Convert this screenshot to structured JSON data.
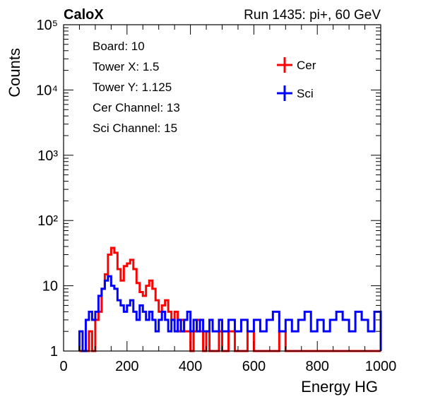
{
  "header": {
    "experiment": "CaloX",
    "run_label": "Run 1435: pi+, 60 GeV"
  },
  "info_box": [
    "Board: 10",
    "Tower X: 1.5",
    "Tower Y: 1.125",
    "Cer Channel: 13",
    "Sci Channel: 15"
  ],
  "chart_data": {
    "type": "line",
    "title": "",
    "xlabel": "Energy HG",
    "ylabel": "Counts",
    "xlim": [
      0,
      1000
    ],
    "ylim": [
      1,
      100000
    ],
    "yscale": "log",
    "grid": false,
    "legend_position": "top-right",
    "x_ticks": [
      "0",
      "200",
      "400",
      "600",
      "800",
      "1000"
    ],
    "y_ticks": [
      {
        "value": 1,
        "label": "1"
      },
      {
        "value": 10,
        "label": "10"
      },
      {
        "value": 100,
        "label": "10²"
      },
      {
        "value": 1000,
        "label": "10³"
      },
      {
        "value": 10000,
        "label": "10⁴"
      },
      {
        "value": 100000,
        "label": "10⁵"
      }
    ],
    "x": [
      50,
      60,
      70,
      80,
      90,
      100,
      110,
      120,
      130,
      140,
      150,
      160,
      170,
      180,
      190,
      200,
      210,
      220,
      230,
      240,
      250,
      260,
      270,
      280,
      290,
      300,
      310,
      320,
      330,
      340,
      350,
      360,
      370,
      380,
      390,
      400,
      410,
      420,
      430,
      440,
      450,
      460,
      470,
      480,
      490,
      500,
      520,
      540,
      560,
      580,
      600,
      620,
      640,
      660,
      680,
      700,
      720,
      740,
      760,
      780,
      800,
      820,
      840,
      860,
      880,
      900,
      920,
      940,
      960,
      980,
      1000
    ],
    "series": [
      {
        "name": "Cer",
        "color": "#ff0000",
        "values": [
          1,
          1,
          1,
          2,
          1,
          3,
          4,
          9,
          15,
          30,
          38,
          32,
          18,
          12,
          20,
          22,
          25,
          18,
          11,
          8,
          7,
          10,
          12,
          9,
          6,
          4,
          5,
          6,
          4,
          3,
          4,
          2,
          3,
          2,
          2,
          1,
          2,
          3,
          2,
          1,
          2,
          1,
          1,
          1,
          2,
          1,
          2,
          1,
          1,
          2,
          1,
          1,
          1,
          1,
          2,
          1,
          1,
          1,
          1,
          1,
          1,
          1,
          1,
          1,
          1,
          1,
          1,
          1,
          1,
          1,
          1
        ]
      },
      {
        "name": "Sci",
        "color": "#0000ff",
        "values": [
          2,
          1,
          3,
          4,
          3,
          4,
          7,
          9,
          12,
          14,
          10,
          9,
          6,
          5,
          4,
          5,
          6,
          4,
          3,
          5,
          4,
          3,
          4,
          3,
          2,
          3,
          4,
          3,
          2,
          3,
          2,
          3,
          2,
          3,
          4,
          2,
          3,
          2,
          3,
          2,
          2,
          3,
          2,
          2,
          3,
          2,
          3,
          2,
          3,
          2,
          3,
          2,
          3,
          4,
          2,
          3,
          2,
          3,
          4,
          2,
          3,
          2,
          3,
          4,
          3,
          2,
          4,
          3,
          2,
          4,
          3
        ]
      }
    ]
  }
}
